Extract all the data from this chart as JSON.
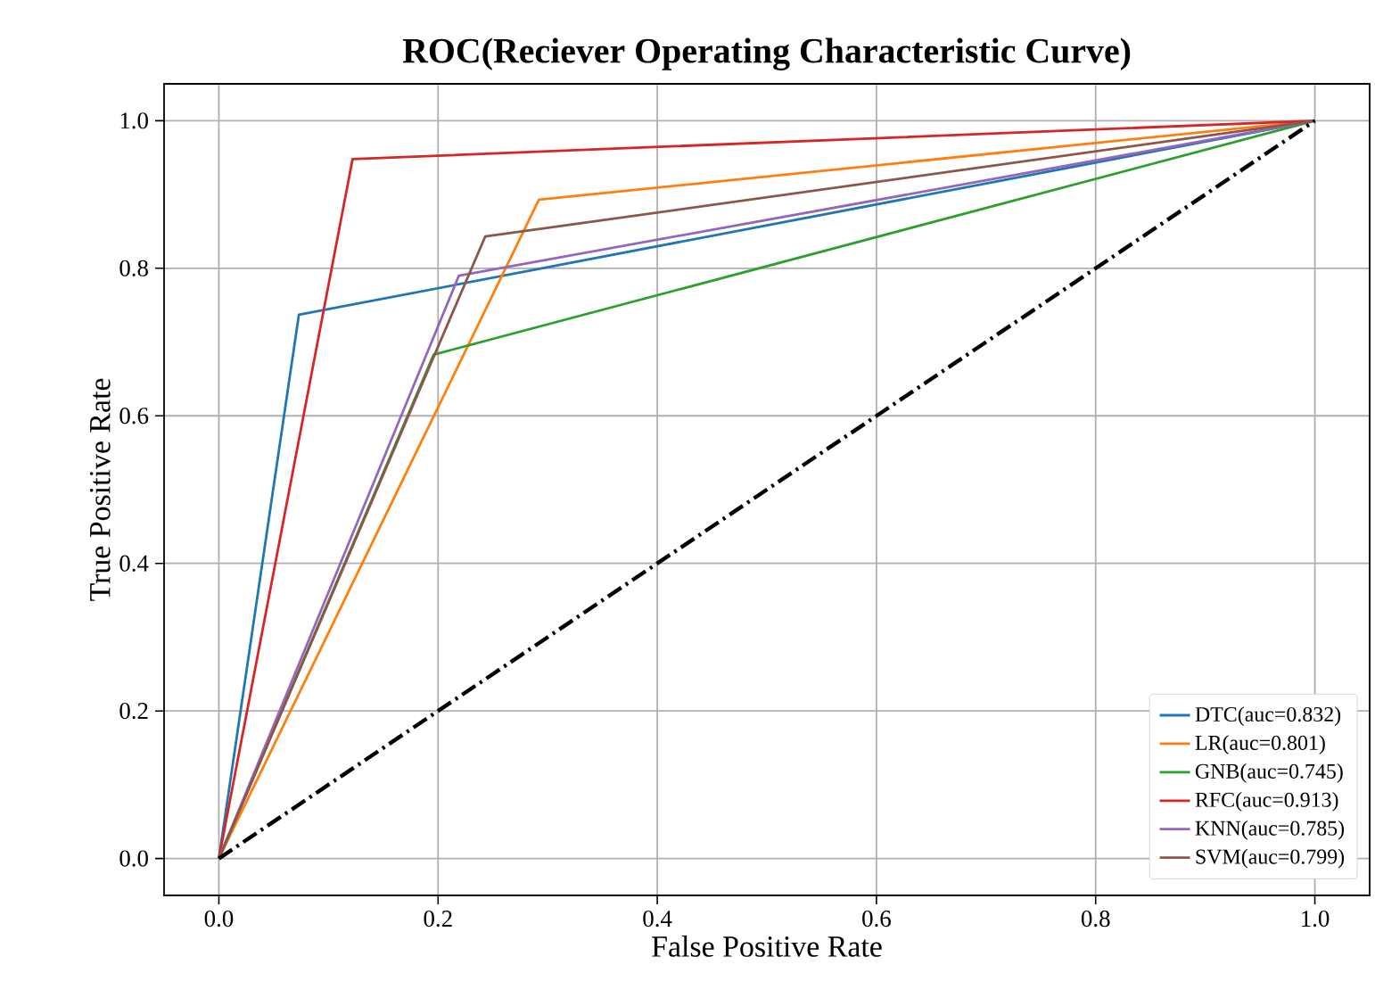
{
  "chart_data": {
    "type": "line",
    "title": "ROC(Reciever Operating Characteristic Curve)",
    "xlabel": "False Positive Rate",
    "ylabel": "True Positive Rate",
    "xlim": [
      -0.05,
      1.05
    ],
    "ylim": [
      -0.05,
      1.05
    ],
    "xticks": [
      {
        "value": 0,
        "label": "0.0"
      },
      {
        "value": 0.2,
        "label": "0.2"
      },
      {
        "value": 0.4,
        "label": "0.4"
      },
      {
        "value": 0.6,
        "label": "0.6"
      },
      {
        "value": 0.8,
        "label": "0.8"
      },
      {
        "value": 1,
        "label": "1.0"
      }
    ],
    "yticks": [
      {
        "value": 0,
        "label": "0.0"
      },
      {
        "value": 0.2,
        "label": "0.2"
      },
      {
        "value": 0.4,
        "label": "0.4"
      },
      {
        "value": 0.6,
        "label": "0.6"
      },
      {
        "value": 0.8,
        "label": "0.8"
      },
      {
        "value": 1,
        "label": "1.0"
      }
    ],
    "grid": true,
    "legend": "bottom right",
    "series": [
      {
        "name": "DTC(auc=0.832)",
        "color": "#1f77b4",
        "x": [
          0,
          0.073,
          1
        ],
        "values": [
          0,
          0.737,
          1
        ]
      },
      {
        "name": "LR(auc=0.801)",
        "color": "#ff7f0e",
        "x": [
          0,
          0.292,
          1
        ],
        "values": [
          0,
          0.893,
          1
        ]
      },
      {
        "name": "GNB(auc=0.745)",
        "color": "#2ca02c",
        "x": [
          0,
          0.196,
          1
        ],
        "values": [
          0,
          0.683,
          1
        ]
      },
      {
        "name": "RFC(auc=0.913)",
        "color": "#d62728",
        "x": [
          0,
          0.122,
          1
        ],
        "values": [
          0,
          0.948,
          1
        ]
      },
      {
        "name": "KNN(auc=0.785)",
        "color": "#9467bd",
        "x": [
          0,
          0.219,
          1
        ],
        "values": [
          0,
          0.79,
          1
        ]
      },
      {
        "name": "SVM(auc=0.799)",
        "color": "#8c564b",
        "x": [
          0,
          0.243,
          1
        ],
        "values": [
          0,
          0.843,
          1
        ]
      },
      {
        "color": "#000000",
        "line_style": "dashdot",
        "x": [
          0,
          1
        ],
        "values": [
          0,
          1
        ]
      }
    ]
  }
}
